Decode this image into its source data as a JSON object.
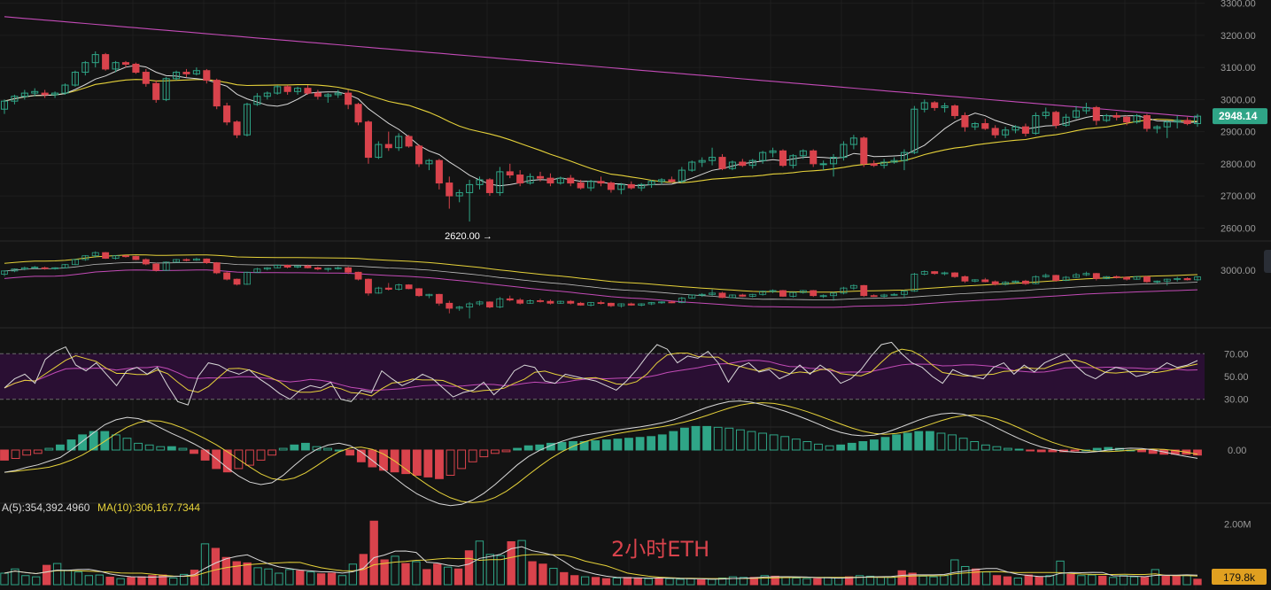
{
  "chart_data": [
    {
      "type": "candlestick",
      "pane": "price",
      "timeframe_annotation": "2小时ETH",
      "y_ticks": [
        "3300.00",
        "3200.00",
        "3100.00",
        "3000.00",
        "2900.00",
        "2800.00",
        "2700.00",
        "2600.00"
      ],
      "ylim": [
        2565,
        3310
      ],
      "last_price": "2948.14",
      "low_marker": "2620.00",
      "candles": [
        [
          2970,
          3000,
          2955,
          2995
        ],
        [
          2995,
          3015,
          2985,
          3010
        ],
        [
          3010,
          3030,
          3000,
          3020
        ],
        [
          3020,
          3035,
          3010,
          3025
        ],
        [
          3020,
          3030,
          3005,
          3015
        ],
        [
          3015,
          3025,
          3005,
          3020
        ],
        [
          3020,
          3050,
          3015,
          3045
        ],
        [
          3045,
          3090,
          3040,
          3085
        ],
        [
          3085,
          3120,
          3075,
          3115
        ],
        [
          3115,
          3150,
          3100,
          3140
        ],
        [
          3140,
          3145,
          3090,
          3095
        ],
        [
          3095,
          3120,
          3085,
          3115
        ],
        [
          3115,
          3120,
          3100,
          3110
        ],
        [
          3110,
          3115,
          3080,
          3085
        ],
        [
          3085,
          3095,
          3040,
          3050
        ],
        [
          3050,
          3060,
          2990,
          3000
        ],
        [
          3000,
          3070,
          2995,
          3065
        ],
        [
          3065,
          3090,
          3060,
          3085
        ],
        [
          3085,
          3095,
          3070,
          3080
        ],
        [
          3080,
          3100,
          3075,
          3090
        ],
        [
          3090,
          3095,
          3050,
          3060
        ],
        [
          3060,
          3065,
          2970,
          2980
        ],
        [
          2980,
          2990,
          2920,
          2930
        ],
        [
          2930,
          2935,
          2880,
          2890
        ],
        [
          2890,
          2990,
          2885,
          2985
        ],
        [
          2985,
          3020,
          2980,
          3010
        ],
        [
          3010,
          3025,
          3000,
          3020
        ],
        [
          3020,
          3045,
          3015,
          3040
        ],
        [
          3040,
          3045,
          3015,
          3025
        ],
        [
          3025,
          3040,
          3015,
          3035
        ],
        [
          3035,
          3045,
          3015,
          3020
        ],
        [
          3020,
          3030,
          3000,
          3010
        ],
        [
          3010,
          3020,
          2990,
          3015
        ],
        [
          3015,
          3030,
          3005,
          3020
        ],
        [
          3020,
          3030,
          2970,
          2985
        ],
        [
          2985,
          2990,
          2920,
          2930
        ],
        [
          2930,
          2935,
          2800,
          2820
        ],
        [
          2820,
          2870,
          2815,
          2860
        ],
        [
          2860,
          2900,
          2840,
          2850
        ],
        [
          2850,
          2895,
          2840,
          2885
        ],
        [
          2885,
          2890,
          2850,
          2855
        ],
        [
          2855,
          2860,
          2790,
          2800
        ],
        [
          2800,
          2815,
          2780,
          2810
        ],
        [
          2810,
          2815,
          2720,
          2740
        ],
        [
          2740,
          2760,
          2660,
          2700
        ],
        [
          2700,
          2720,
          2680,
          2710
        ],
        [
          2710,
          2750,
          2620,
          2735
        ],
        [
          2735,
          2760,
          2720,
          2750
        ],
        [
          2750,
          2755,
          2700,
          2710
        ],
        [
          2710,
          2790,
          2700,
          2775
        ],
        [
          2775,
          2800,
          2755,
          2765
        ],
        [
          2765,
          2780,
          2730,
          2740
        ],
        [
          2740,
          2770,
          2735,
          2760
        ],
        [
          2760,
          2775,
          2745,
          2755
        ],
        [
          2755,
          2770,
          2730,
          2740
        ],
        [
          2740,
          2760,
          2735,
          2755
        ],
        [
          2755,
          2765,
          2730,
          2740
        ],
        [
          2740,
          2750,
          2720,
          2725
        ],
        [
          2725,
          2750,
          2715,
          2745
        ],
        [
          2745,
          2760,
          2730,
          2740
        ],
        [
          2740,
          2745,
          2710,
          2720
        ],
        [
          2720,
          2740,
          2705,
          2735
        ],
        [
          2735,
          2745,
          2720,
          2725
        ],
        [
          2725,
          2740,
          2715,
          2735
        ],
        [
          2735,
          2750,
          2725,
          2745
        ],
        [
          2745,
          2755,
          2735,
          2750
        ],
        [
          2750,
          2760,
          2740,
          2745
        ],
        [
          2745,
          2790,
          2740,
          2780
        ],
        [
          2780,
          2810,
          2775,
          2805
        ],
        [
          2805,
          2820,
          2790,
          2810
        ],
        [
          2810,
          2850,
          2795,
          2820
        ],
        [
          2820,
          2830,
          2780,
          2785
        ],
        [
          2785,
          2810,
          2780,
          2805
        ],
        [
          2805,
          2815,
          2790,
          2795
        ],
        [
          2795,
          2815,
          2785,
          2810
        ],
        [
          2810,
          2840,
          2800,
          2835
        ],
        [
          2835,
          2850,
          2820,
          2840
        ],
        [
          2840,
          2845,
          2790,
          2795
        ],
        [
          2795,
          2830,
          2785,
          2825
        ],
        [
          2825,
          2845,
          2815,
          2840
        ],
        [
          2840,
          2845,
          2790,
          2800
        ],
        [
          2800,
          2810,
          2780,
          2800
        ],
        [
          2800,
          2830,
          2760,
          2820
        ],
        [
          2820,
          2870,
          2810,
          2860
        ],
        [
          2860,
          2890,
          2845,
          2880
        ],
        [
          2880,
          2885,
          2790,
          2800
        ],
        [
          2800,
          2810,
          2790,
          2795
        ],
        [
          2795,
          2815,
          2785,
          2805
        ],
        [
          2805,
          2820,
          2800,
          2810
        ],
        [
          2810,
          2845,
          2780,
          2835
        ],
        [
          2835,
          2980,
          2830,
          2970
        ],
        [
          2970,
          3000,
          2960,
          2990
        ],
        [
          2990,
          2995,
          2965,
          2975
        ],
        [
          2975,
          2990,
          2960,
          2980
        ],
        [
          2980,
          2985,
          2940,
          2950
        ],
        [
          2950,
          2960,
          2900,
          2915
        ],
        [
          2915,
          2930,
          2905,
          2925
        ],
        [
          2925,
          2940,
          2905,
          2910
        ],
        [
          2910,
          2920,
          2880,
          2890
        ],
        [
          2890,
          2915,
          2880,
          2905
        ],
        [
          2905,
          2920,
          2895,
          2915
        ],
        [
          2915,
          2925,
          2885,
          2895
        ],
        [
          2895,
          2960,
          2890,
          2950
        ],
        [
          2950,
          2975,
          2940,
          2960
        ],
        [
          2960,
          2965,
          2910,
          2920
        ],
        [
          2920,
          2955,
          2915,
          2945
        ],
        [
          2945,
          2980,
          2940,
          2965
        ],
        [
          2965,
          2990,
          2955,
          2975
        ],
        [
          2975,
          2980,
          2920,
          2935
        ],
        [
          2935,
          2955,
          2930,
          2950
        ],
        [
          2950,
          2960,
          2935,
          2945
        ],
        [
          2945,
          2950,
          2920,
          2930
        ],
        [
          2930,
          2955,
          2925,
          2950
        ],
        [
          2950,
          2955,
          2900,
          2910
        ],
        [
          2910,
          2920,
          2895,
          2915
        ],
        [
          2915,
          2935,
          2880,
          2930
        ],
        [
          2930,
          2950,
          2910,
          2935
        ],
        [
          2935,
          2945,
          2920,
          2925
        ],
        [
          2925,
          2955,
          2915,
          2948.14
        ]
      ]
    },
    {
      "type": "line",
      "pane": "overview",
      "y_ticks": [
        "3000.00"
      ]
    },
    {
      "type": "line",
      "pane": "rsi",
      "y_ticks": [
        "70.00",
        "50.00",
        "30.00"
      ],
      "ylim": [
        15,
        85
      ],
      "band": [
        30,
        70
      ],
      "series": [
        {
          "values": [
            40,
            48,
            52,
            44,
            65,
            72,
            76,
            60,
            55,
            62,
            52,
            42,
            55,
            58,
            52,
            58,
            42,
            28,
            25,
            50,
            62,
            60,
            55,
            52,
            56,
            48,
            42,
            35,
            30,
            38,
            42,
            40,
            45,
            30,
            28,
            38,
            36,
            55,
            48,
            42,
            46,
            52,
            48,
            40,
            32,
            36,
            38,
            45,
            34,
            42,
            55,
            60,
            58,
            46,
            44,
            52,
            50,
            48,
            46,
            42,
            38,
            46,
            56,
            68,
            78,
            74,
            62,
            68,
            66,
            72,
            62,
            45,
            58,
            62,
            54,
            56,
            48,
            52,
            60,
            52,
            60,
            54,
            44,
            48,
            56,
            68,
            78,
            80,
            70,
            62,
            58,
            50,
            44,
            56,
            52,
            50,
            48,
            58,
            62,
            52,
            60,
            54,
            62,
            66,
            70,
            60,
            52,
            48,
            54,
            58,
            56,
            50,
            52,
            56,
            62,
            58,
            60,
            64
          ]
        }
      ]
    },
    {
      "type": "bar",
      "pane": "macd",
      "y_ticks": [
        "0.00"
      ],
      "ylim": [
        -1,
        1
      ],
      "values": [
        -0.12,
        -0.1,
        -0.06,
        -0.04,
        0.02,
        0.06,
        0.12,
        0.18,
        0.22,
        0.22,
        0.18,
        0.14,
        0.08,
        0.06,
        0.04,
        0.04,
        0.02,
        -0.04,
        -0.12,
        -0.22,
        -0.26,
        -0.22,
        -0.18,
        -0.12,
        -0.06,
        0.02,
        0.06,
        0.08,
        0.04,
        0.02,
        0.0,
        -0.06,
        -0.14,
        -0.2,
        -0.24,
        -0.26,
        -0.28,
        -0.3,
        -0.32,
        -0.34,
        -0.3,
        -0.22,
        -0.14,
        -0.08,
        -0.04,
        -0.02,
        0.02,
        0.05,
        0.06,
        0.08,
        0.09,
        0.1,
        0.1,
        0.11,
        0.12,
        0.13,
        0.14,
        0.15,
        0.16,
        0.18,
        0.22,
        0.26,
        0.28,
        0.28,
        0.27,
        0.26,
        0.24,
        0.22,
        0.2,
        0.18,
        0.16,
        0.13,
        0.1,
        0.07,
        0.05,
        0.06,
        0.08,
        0.1,
        0.12,
        0.15,
        0.18,
        0.2,
        0.22,
        0.22,
        0.2,
        0.18,
        0.14,
        0.1,
        0.06,
        0.04,
        0.02,
        0.01,
        -0.01,
        -0.02,
        -0.02,
        -0.02,
        -0.01,
        0.0,
        0.02,
        0.03,
        0.02,
        0.0,
        -0.02,
        -0.04,
        -0.05,
        -0.05,
        -0.05,
        -0.06
      ]
    },
    {
      "type": "bar",
      "pane": "volume",
      "ma_header": "A(5):354,392.4960",
      "ma10_header": "MA(10):306,167.7344",
      "y_ticks": [
        "2.00M"
      ],
      "ylim": [
        0,
        2400
      ],
      "last_volume": "179.8k",
      "values": [
        380,
        520,
        300,
        260,
        640,
        700,
        480,
        420,
        300,
        320,
        250,
        200,
        240,
        260,
        300,
        320,
        220,
        340,
        480,
        1350,
        1200,
        900,
        760,
        720,
        560,
        520,
        380,
        500,
        460,
        420,
        360,
        380,
        300,
        680,
        1000,
        2100,
        820,
        940,
        700,
        760,
        500,
        680,
        580,
        520,
        1120,
        1440,
        1000,
        960,
        1420,
        1460,
        760,
        680,
        540,
        400,
        300,
        260,
        240,
        200,
        220,
        240,
        220,
        200,
        220,
        200,
        180,
        200,
        160,
        180,
        220,
        260,
        240,
        240,
        300,
        280,
        260,
        220,
        200,
        200,
        240,
        220,
        260,
        300,
        280,
        260,
        240,
        460,
        380,
        280,
        260,
        300,
        820,
        600,
        520,
        420,
        300,
        260,
        220,
        320,
        260,
        300,
        780,
        340,
        300,
        320,
        280,
        240,
        300,
        260,
        240,
        500,
        280,
        300,
        300,
        180
      ]
    }
  ]
}
